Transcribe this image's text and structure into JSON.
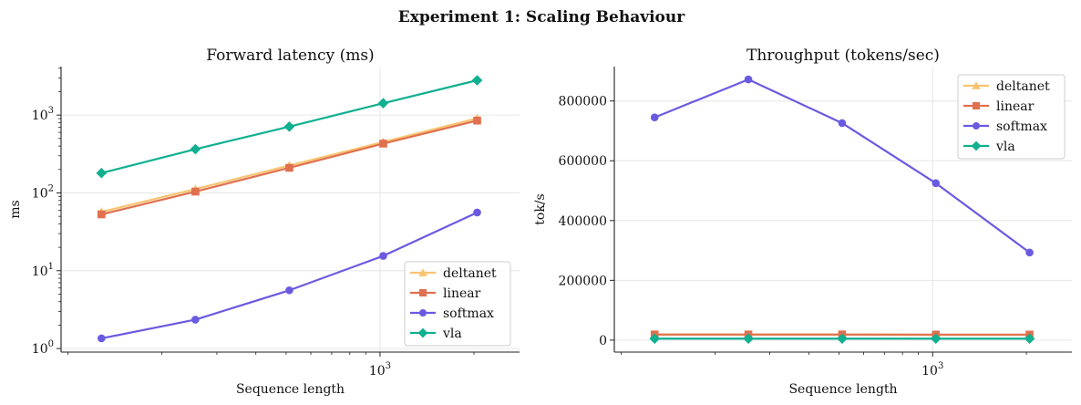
{
  "figure": {
    "suptitle": "Experiment 1: Scaling Behaviour"
  },
  "series_styles": {
    "deltanet": {
      "color": "#f8c471",
      "marker": "triangle"
    },
    "linear": {
      "color": "#e07050",
      "marker": "square"
    },
    "softmax": {
      "color": "#6a5ae0",
      "marker": "circle"
    },
    "vla": {
      "color": "#10b090",
      "marker": "diamond"
    }
  },
  "chart_data": [
    {
      "type": "line",
      "title": "Forward latency (ms)",
      "xlabel": "Sequence length",
      "ylabel": "ms",
      "xscale": "log",
      "yscale": "log",
      "x": [
        128,
        256,
        512,
        1024,
        2048
      ],
      "xlim": [
        95,
        2800
      ],
      "ylim": [
        0.9,
        4200
      ],
      "x_major_ticks": [
        {
          "value": 1000,
          "label": "10^3"
        }
      ],
      "x_minor_ticks": [
        100,
        200,
        300,
        400,
        500,
        600,
        700,
        800,
        900,
        2000
      ],
      "y_ticks": [
        {
          "value": 1,
          "label": "10^0"
        },
        {
          "value": 10,
          "label": "10^1"
        },
        {
          "value": 100,
          "label": "10^2"
        },
        {
          "value": 1000,
          "label": "10^3"
        }
      ],
      "grid": true,
      "legend": "lower-right",
      "series": [
        {
          "name": "deltanet",
          "values": [
            57,
            112,
            225,
            450,
            910
          ]
        },
        {
          "name": "linear",
          "values": [
            53,
            104,
            210,
            430,
            850
          ]
        },
        {
          "name": "softmax",
          "values": [
            1.35,
            2.35,
            5.6,
            15.5,
            56
          ]
        },
        {
          "name": "vla",
          "values": [
            180,
            365,
            710,
            1420,
            2800
          ]
        }
      ]
    },
    {
      "type": "line",
      "title": "Throughput (tokens/sec)",
      "xlabel": "Sequence length",
      "ylabel": "tok/s",
      "xscale": "log",
      "yscale": "linear",
      "x": [
        128,
        256,
        512,
        1024,
        2048
      ],
      "xlim": [
        95,
        2800
      ],
      "ylim": [
        -40000,
        915000
      ],
      "x_major_ticks": [
        {
          "value": 1000,
          "label": "10^3"
        }
      ],
      "x_minor_ticks": [
        100,
        200,
        300,
        400,
        500,
        600,
        700,
        800,
        900,
        2000
      ],
      "y_ticks": [
        {
          "value": 0,
          "label": "0"
        },
        {
          "value": 200000,
          "label": "200000"
        },
        {
          "value": 400000,
          "label": "400000"
        },
        {
          "value": 600000,
          "label": "600000"
        },
        {
          "value": 800000,
          "label": "800000"
        }
      ],
      "grid": true,
      "legend": "top-right",
      "series": [
        {
          "name": "deltanet",
          "values": [
            18000,
            18000,
            18000,
            17500,
            17500
          ]
        },
        {
          "name": "linear",
          "values": [
            19000,
            19000,
            19000,
            18500,
            18500
          ]
        },
        {
          "name": "softmax",
          "values": [
            745000,
            872000,
            726000,
            525000,
            293000
          ]
        },
        {
          "name": "vla",
          "values": [
            5000,
            5000,
            5000,
            5000,
            5000
          ]
        }
      ]
    }
  ]
}
